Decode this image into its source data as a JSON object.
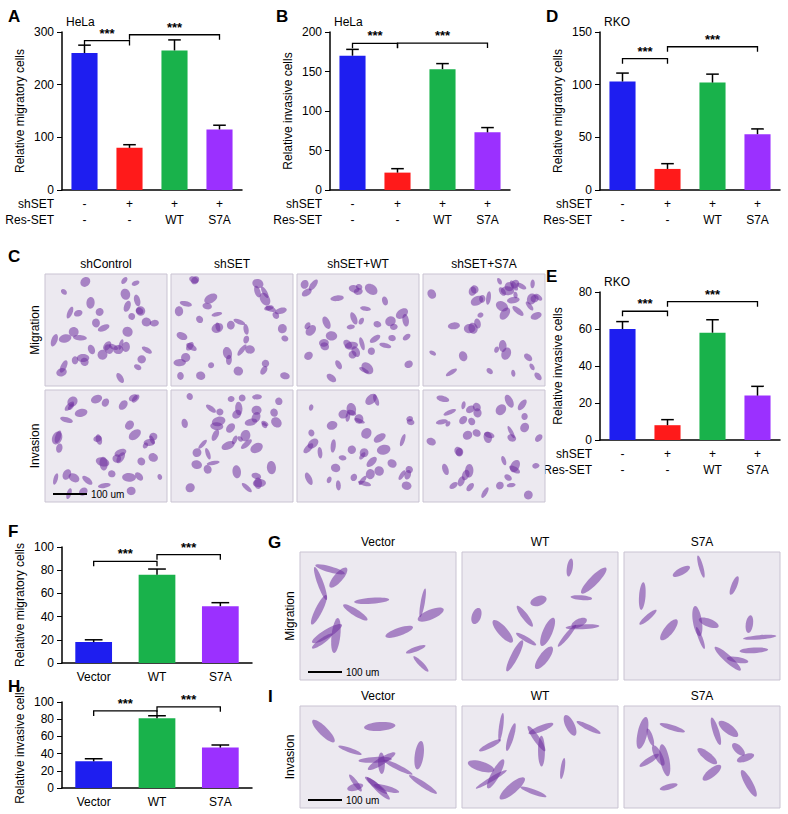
{
  "chart_data": [
    {
      "panel": "A",
      "type": "bar",
      "cell_line": "HeLa",
      "y_label": "Relative migratory cells",
      "x_row_labels": [
        "shSET",
        "Res-SET"
      ],
      "x_rows": [
        [
          "-",
          "+",
          "+",
          "+"
        ],
        [
          "-",
          "-",
          "WT",
          "S7A"
        ]
      ],
      "values": [
        260,
        80,
        265,
        115
      ],
      "errors": [
        15,
        6,
        20,
        8
      ],
      "colors": [
        "#1e1ef0",
        "#ff1a1a",
        "#19b24b",
        "#9b30ff"
      ],
      "ylim": [
        0,
        300
      ],
      "yticks": [
        0,
        100,
        200,
        300
      ],
      "grid": false,
      "significance": [
        {
          "from": 0,
          "to": 1,
          "label": "***"
        },
        {
          "from": 1,
          "to": 3,
          "label": "***"
        }
      ]
    },
    {
      "panel": "B",
      "type": "bar",
      "cell_line": "HeLa",
      "y_label": "Relative invasive cells",
      "x_row_labels": [
        "shSET",
        "Res-SET"
      ],
      "x_rows": [
        [
          "-",
          "+",
          "+",
          "+"
        ],
        [
          "-",
          "-",
          "WT",
          "S7A"
        ]
      ],
      "values": [
        170,
        22,
        153,
        73
      ],
      "errors": [
        8,
        5,
        7,
        6
      ],
      "colors": [
        "#1e1ef0",
        "#ff1a1a",
        "#19b24b",
        "#9b30ff"
      ],
      "ylim": [
        0,
        200
      ],
      "yticks": [
        0,
        50,
        100,
        150,
        200
      ],
      "grid": false,
      "significance": [
        {
          "from": 0,
          "to": 1,
          "label": "***"
        },
        {
          "from": 1,
          "to": 3,
          "label": "***"
        }
      ]
    },
    {
      "panel": "D",
      "type": "bar",
      "cell_line": "RKO",
      "y_label": "Relative migratory cells",
      "x_row_labels": [
        "shSET",
        "Res-SET"
      ],
      "x_rows": [
        [
          "-",
          "+",
          "+",
          "+"
        ],
        [
          "-",
          "-",
          "WT",
          "S7A"
        ]
      ],
      "values": [
        103,
        20,
        102,
        53
      ],
      "errors": [
        8,
        5,
        8,
        5
      ],
      "colors": [
        "#1e1ef0",
        "#ff1a1a",
        "#19b24b",
        "#9b30ff"
      ],
      "ylim": [
        0,
        150
      ],
      "yticks": [
        0,
        50,
        100,
        150
      ],
      "grid": false,
      "significance": [
        {
          "from": 0,
          "to": 1,
          "label": "***"
        },
        {
          "from": 1,
          "to": 3,
          "label": "***"
        }
      ]
    },
    {
      "panel": "E",
      "type": "bar",
      "cell_line": "RKO",
      "y_label": "Relative invasive cells",
      "x_row_labels": [
        "shSET",
        "Res-SET"
      ],
      "x_rows": [
        [
          "-",
          "+",
          "+",
          "+"
        ],
        [
          "-",
          "-",
          "WT",
          "S7A"
        ]
      ],
      "values": [
        60,
        8,
        58,
        24
      ],
      "errors": [
        4,
        3,
        7,
        5
      ],
      "colors": [
        "#1e1ef0",
        "#ff1a1a",
        "#19b24b",
        "#9b30ff"
      ],
      "ylim": [
        0,
        80
      ],
      "yticks": [
        0,
        20,
        40,
        60,
        80
      ],
      "grid": false,
      "significance": [
        {
          "from": 0,
          "to": 1,
          "label": "***"
        },
        {
          "from": 1,
          "to": 3,
          "label": "***"
        }
      ]
    },
    {
      "panel": "F",
      "type": "bar",
      "y_label": "Relative migratory cells",
      "categories": [
        "Vector",
        "WT",
        "S7A"
      ],
      "values": [
        18,
        76,
        49
      ],
      "errors": [
        2,
        5,
        3
      ],
      "colors": [
        "#1e1ef0",
        "#19b24b",
        "#9b30ff"
      ],
      "ylim": [
        0,
        100
      ],
      "yticks": [
        0,
        20,
        40,
        60,
        80,
        100
      ],
      "grid": false,
      "significance": [
        {
          "from": 0,
          "to": 1,
          "label": "***"
        },
        {
          "from": 1,
          "to": 2,
          "label": "***"
        }
      ]
    },
    {
      "panel": "H",
      "type": "bar",
      "y_label": "Relative invasive cells",
      "categories": [
        "Vector",
        "WT",
        "S7A"
      ],
      "values": [
        31,
        81,
        47
      ],
      "errors": [
        3,
        3,
        3
      ],
      "colors": [
        "#1e1ef0",
        "#19b24b",
        "#9b30ff"
      ],
      "ylim": [
        0,
        100
      ],
      "yticks": [
        0,
        20,
        40,
        60,
        80,
        100
      ],
      "grid": false,
      "significance": [
        {
          "from": 0,
          "to": 1,
          "label": "***"
        },
        {
          "from": 1,
          "to": 2,
          "label": "***"
        }
      ]
    }
  ],
  "image_panels": [
    {
      "panel": "C",
      "columns": [
        "shControl",
        "shSET",
        "shSET+WT",
        "shSET+S7A"
      ],
      "rows": [
        "Migration",
        "Invasion"
      ],
      "scale_bar": "100 um"
    },
    {
      "panel": "G",
      "columns": [
        "Vector",
        "WT",
        "S7A"
      ],
      "rows": [
        "Migration"
      ],
      "scale_bar": "100 um"
    },
    {
      "panel": "I",
      "columns": [
        "Vector",
        "WT",
        "S7A"
      ],
      "rows": [
        "Invasion"
      ],
      "scale_bar": "100 um"
    }
  ]
}
